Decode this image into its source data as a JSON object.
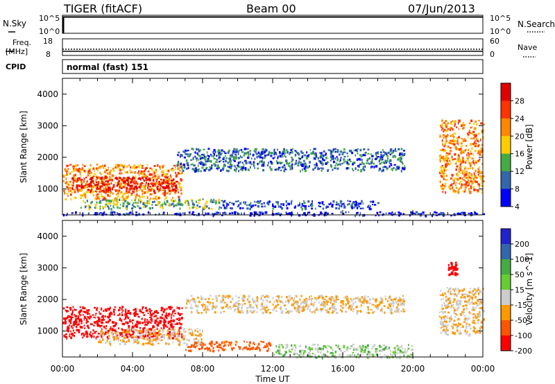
{
  "header": {
    "radar": "TIGER (fitACF)",
    "beam": "Beam 00",
    "date": "07/Jun/2013"
  },
  "noise_panel": {
    "left_label": "N.Sky",
    "right_label": "N.Search",
    "ticks": [
      "10^5",
      "10^0"
    ]
  },
  "freq_panel": {
    "left_label_line1": "Freq.",
    "left_label_line2": "[MHz]",
    "left_ticks": [
      "18",
      "8"
    ],
    "right_label": "Nave",
    "right_ticks": [
      "60",
      "0"
    ]
  },
  "cpid_panel": {
    "label": "CPID",
    "text": "normal (fast) 151"
  },
  "power_colorbar": {
    "title": "Power [dB]",
    "ticks": [
      "28",
      "24",
      "20",
      "16",
      "12",
      "8",
      "4"
    ],
    "colors": [
      "#e00000",
      "#ff3300",
      "#ff8800",
      "#ffcc00",
      "#44aa44",
      "#3366aa",
      "#0000ff"
    ]
  },
  "velocity_colorbar": {
    "title": "Velocity [m s^-1]",
    "ticks": [
      "200",
      "100",
      "50",
      "15",
      "-15",
      "-50",
      "-100",
      "-200"
    ],
    "colors": [
      "#2222cc",
      "#3366aa",
      "#44aa44",
      "#66cc33",
      "#cccccc",
      "#ff9900",
      "#ff5500",
      "#ff0000"
    ]
  },
  "axes": {
    "ylabel": "Slant Range [km]",
    "xlabel": "Time UT",
    "y_ticks": [
      "4000",
      "3000",
      "2000",
      "1000"
    ],
    "x_ticks": [
      "00:00",
      "04:00",
      "08:00",
      "12:00",
      "16:00",
      "20:00",
      "00:00"
    ]
  },
  "chart_data": [
    {
      "type": "heatmap",
      "title": "Power [dB]",
      "xlabel": "",
      "ylabel": "Slant Range [km]",
      "xlim": [
        0,
        24
      ],
      "ylim": [
        180,
        4500
      ],
      "xunit": "hours UT",
      "series": [
        {
          "x": [
            0,
            6.8
          ],
          "y": [
            700,
            1800
          ],
          "value": 20
        },
        {
          "x": [
            0.5,
            6.5
          ],
          "y": [
            950,
            1400
          ],
          "value": 28
        },
        {
          "x": [
            6.5,
            19.5
          ],
          "y": [
            1600,
            2300
          ],
          "value": 8
        },
        {
          "x": [
            1,
            9
          ],
          "y": [
            400,
            700
          ],
          "value": 12
        },
        {
          "x": [
            9,
            18
          ],
          "y": [
            400,
            650
          ],
          "value": 6
        },
        {
          "x": [
            21.5,
            24
          ],
          "y": [
            900,
            3200
          ],
          "value": 20
        },
        {
          "x": [
            0,
            24
          ],
          "y": [
            180,
            300
          ],
          "value": 4
        }
      ]
    },
    {
      "type": "heatmap",
      "title": "Velocity [m s^-1]",
      "xlabel": "Time UT",
      "ylabel": "Slant Range [km]",
      "xlim": [
        0,
        24
      ],
      "ylim": [
        180,
        4500
      ],
      "xunit": "hours UT",
      "series": [
        {
          "x": [
            0,
            6.8
          ],
          "y": [
            800,
            1800
          ],
          "value": -200
        },
        {
          "x": [
            2,
            8
          ],
          "y": [
            600,
            1100
          ],
          "value": -15
        },
        {
          "x": [
            7,
            19.5
          ],
          "y": [
            1600,
            2150
          ],
          "value": -15
        },
        {
          "x": [
            7,
            12
          ],
          "y": [
            400,
            700
          ],
          "value": -100
        },
        {
          "x": [
            12,
            20
          ],
          "y": [
            180,
            600
          ],
          "value": 15
        },
        {
          "x": [
            21.5,
            24
          ],
          "y": [
            900,
            2400
          ],
          "value": -15
        },
        {
          "x": [
            22,
            22.5
          ],
          "y": [
            2800,
            3200
          ],
          "value": -200
        }
      ]
    }
  ]
}
